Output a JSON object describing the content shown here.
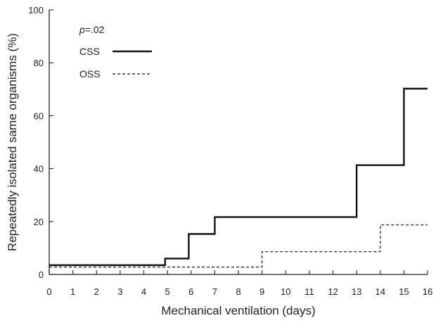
{
  "chart_data": {
    "type": "line",
    "step": true,
    "xlabel": "Mechanical ventilation (days)",
    "ylabel": "Repeatedly isolated same organisms (%)",
    "xlim": [
      0,
      16
    ],
    "ylim": [
      0,
      100
    ],
    "x_ticks": [
      "0",
      "1",
      "2",
      "3",
      "4",
      "5",
      "6",
      "7",
      "8",
      "9",
      "10",
      "11",
      "12",
      "13",
      "14",
      "15",
      "16"
    ],
    "y_ticks": [
      "0",
      "20",
      "40",
      "60",
      "80",
      "100"
    ],
    "annotation": {
      "p_symbol": "p",
      "p_value": "=.02"
    },
    "legend_position": "top-left",
    "series": [
      {
        "name": "CSS",
        "style": "solid",
        "color": "#111111",
        "points": [
          [
            0,
            3.5
          ],
          [
            4.9,
            3.5
          ],
          [
            4.9,
            6
          ],
          [
            5.9,
            6
          ],
          [
            5.9,
            15.3
          ],
          [
            7,
            15.3
          ],
          [
            7,
            21.7
          ],
          [
            13,
            21.7
          ],
          [
            13,
            41.3
          ],
          [
            15,
            41.3
          ],
          [
            15,
            70.2
          ],
          [
            16,
            70.2
          ]
        ]
      },
      {
        "name": "OSS",
        "style": "dashed",
        "color": "#111111",
        "points": [
          [
            0,
            2.8
          ],
          [
            9,
            2.8
          ],
          [
            9,
            8.6
          ],
          [
            14,
            8.6
          ],
          [
            14,
            18.7
          ],
          [
            16,
            18.7
          ]
        ]
      }
    ]
  }
}
